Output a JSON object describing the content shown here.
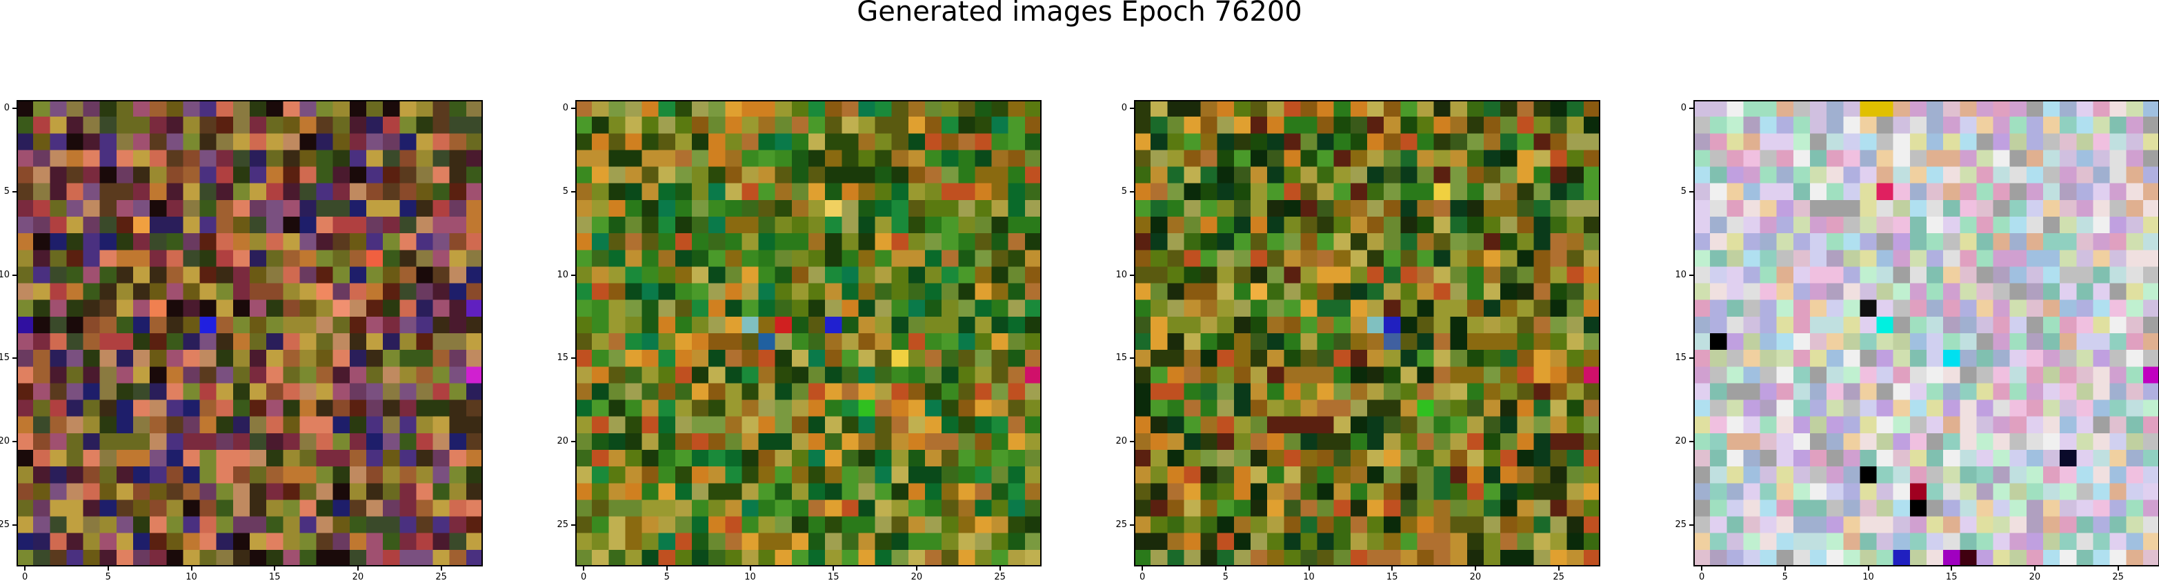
{
  "figure": {
    "title": "Generated images Epoch 76200"
  },
  "chart_data": {
    "type": "heatmap",
    "title": "Generated images Epoch 76200",
    "grid_size": 28,
    "xticks": [
      0,
      5,
      10,
      15,
      20,
      25
    ],
    "yticks": [
      0,
      5,
      10,
      15,
      20,
      25
    ],
    "xlim": [
      -0.5,
      27.5
    ],
    "ylim": [
      27.5,
      -0.5
    ],
    "grid": false,
    "panels": [
      {
        "palette": [
          "#6b5a14",
          "#8a4a2a",
          "#5a3a1e",
          "#3a2a14",
          "#4a1a2e",
          "#7a2a3e",
          "#a06030",
          "#c07830",
          "#3a5a1a",
          "#2a3a10",
          "#6a6a20",
          "#9a8a30",
          "#b04040",
          "#d06a50",
          "#7a5080",
          "#4a3080",
          "#2a1e5a",
          "#1a0a0a",
          "#c08a60",
          "#8a7a40",
          "#5a2010",
          "#3a4a2a",
          "#a05070",
          "#6a3a60",
          "#e08060",
          "#1e1e6a",
          "#c0a040",
          "#7a8a30"
        ],
        "accents": [
          {
            "x": 11,
            "y": 13,
            "color": "#2020e0"
          },
          {
            "x": 18,
            "y": 11,
            "color": "#f08860"
          },
          {
            "x": 19,
            "y": 12,
            "color": "#f09070"
          },
          {
            "x": 8,
            "y": 12,
            "color": "#f08050"
          },
          {
            "x": 27,
            "y": 16,
            "color": "#d020d0"
          },
          {
            "x": 7,
            "y": 7,
            "color": "#f0a040"
          },
          {
            "x": 21,
            "y": 9,
            "color": "#f06040"
          },
          {
            "x": 0,
            "y": 13,
            "color": "#3010a0"
          },
          {
            "x": 27,
            "y": 12,
            "color": "#6020c0"
          }
        ]
      },
      {
        "palette": [
          "#2a7a1a",
          "#3a8a20",
          "#1a5a14",
          "#0a6a2a",
          "#5a7a10",
          "#7a8a20",
          "#9a9a30",
          "#b0a040",
          "#c09030",
          "#a07020",
          "#8a6a10",
          "#6a8a30",
          "#1a8a3a",
          "#0a4a1a",
          "#4a9a2a",
          "#c0b050",
          "#d08020",
          "#8a5a10",
          "#3a6a1a",
          "#b07030",
          "#7a9a40",
          "#2a4a0a",
          "#a0a050",
          "#5a5a10",
          "#0a7a4a",
          "#c05020",
          "#1a3a0a",
          "#e0a030"
        ],
        "accents": [
          {
            "x": 15,
            "y": 13,
            "color": "#2020d0"
          },
          {
            "x": 10,
            "y": 13,
            "color": "#80c0c0"
          },
          {
            "x": 11,
            "y": 14,
            "color": "#2060a0"
          },
          {
            "x": 27,
            "y": 16,
            "color": "#d0106a"
          },
          {
            "x": 17,
            "y": 18,
            "color": "#30c020"
          },
          {
            "x": 12,
            "y": 13,
            "color": "#d02020"
          },
          {
            "x": 19,
            "y": 15,
            "color": "#f0d040"
          },
          {
            "x": 15,
            "y": 6,
            "color": "#f0d060"
          }
        ]
      },
      {
        "palette": [
          "#2a7a1a",
          "#3a6a10",
          "#1a4a0a",
          "#0a3a1a",
          "#5a7a10",
          "#7a8a20",
          "#9a9a30",
          "#b0a040",
          "#c09030",
          "#a07020",
          "#8a6a10",
          "#6a8a30",
          "#1a6a2a",
          "#0a2a0a",
          "#4a9a2a",
          "#c0b050",
          "#d08020",
          "#8a5a10",
          "#3a5a1a",
          "#b07030",
          "#7a9a40",
          "#2a3a0a",
          "#a0a050",
          "#5a5a10",
          "#5a2010",
          "#c05020",
          "#1a2a0a",
          "#e0a030"
        ],
        "accents": [
          {
            "x": 15,
            "y": 13,
            "color": "#2020c0"
          },
          {
            "x": 14,
            "y": 13,
            "color": "#80c0c0"
          },
          {
            "x": 15,
            "y": 14,
            "color": "#4060a0"
          },
          {
            "x": 27,
            "y": 16,
            "color": "#d0106a"
          },
          {
            "x": 17,
            "y": 18,
            "color": "#30c020"
          },
          {
            "x": 18,
            "y": 5,
            "color": "#f0d040"
          },
          {
            "x": 7,
            "y": 11,
            "color": "#f0b040"
          }
        ]
      },
      {
        "palette": [
          "#e0c0d0",
          "#c0a0e0",
          "#a0e0c0",
          "#f0f0f0",
          "#e0e0a0",
          "#a0c0e0",
          "#d0d0f0",
          "#f0c0e0",
          "#c0e0e0",
          "#e0a0c0",
          "#b0b0e0",
          "#d0e0b0",
          "#a0a0a0",
          "#e0d0f0",
          "#c0c0c0",
          "#f0e0e0",
          "#90d0c0",
          "#d0a0d0",
          "#b0e0f0",
          "#e0b090",
          "#c0d0a0",
          "#a0b0d0",
          "#f0d0a0",
          "#d0c0e0",
          "#80c0b0",
          "#e0e0e0",
          "#b0a0c0",
          "#c0f0d0"
        ],
        "accents": [
          {
            "x": 11,
            "y": 13,
            "color": "#00f0e0"
          },
          {
            "x": 15,
            "y": 15,
            "color": "#00e0f0"
          },
          {
            "x": 10,
            "y": 12,
            "color": "#101010"
          },
          {
            "x": 10,
            "y": 22,
            "color": "#000000"
          },
          {
            "x": 13,
            "y": 24,
            "color": "#000000"
          },
          {
            "x": 13,
            "y": 23,
            "color": "#a00020"
          },
          {
            "x": 1,
            "y": 14,
            "color": "#000000"
          },
          {
            "x": 11,
            "y": 5,
            "color": "#e02060"
          },
          {
            "x": 11,
            "y": 0,
            "color": "#e0c000"
          },
          {
            "x": 10,
            "y": 0,
            "color": "#e0c000"
          },
          {
            "x": 27,
            "y": 16,
            "color": "#c000c0"
          },
          {
            "x": 22,
            "y": 21,
            "color": "#0a0a2a"
          },
          {
            "x": 12,
            "y": 27,
            "color": "#2020c0"
          },
          {
            "x": 15,
            "y": 27,
            "color": "#a000c0"
          },
          {
            "x": 16,
            "y": 27,
            "color": "#400010"
          }
        ]
      }
    ]
  }
}
